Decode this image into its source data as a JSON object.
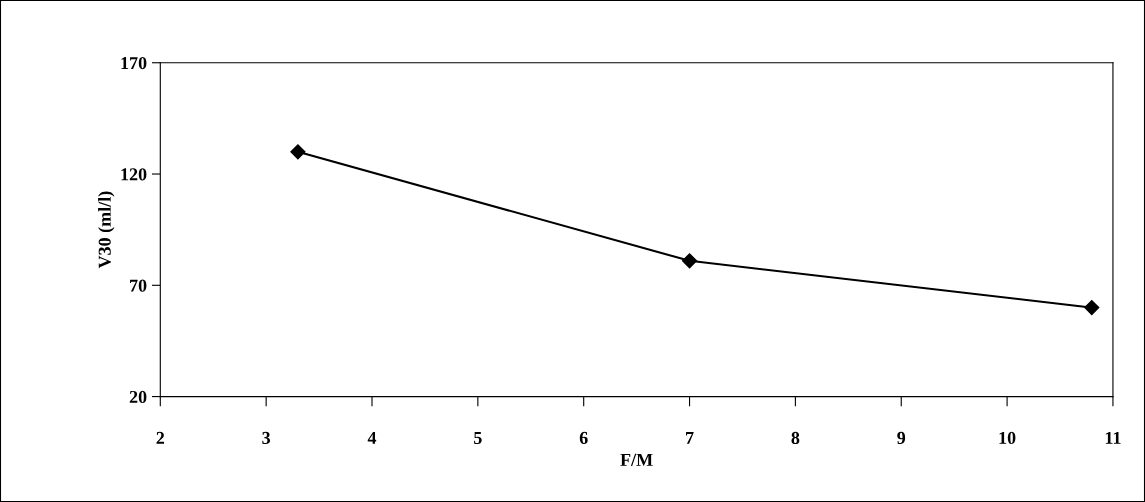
{
  "chart_data": {
    "type": "line",
    "xlabel": "F/M",
    "ylabel": "V30 (ml/l)",
    "x": [
      3.3,
      7,
      10.8
    ],
    "series": [
      {
        "color": "#000000",
        "values": [
          130,
          81,
          60
        ]
      }
    ],
    "xlim": [
      2,
      11
    ],
    "xticks": [
      2,
      3,
      4,
      5,
      6,
      7,
      8,
      9,
      10,
      11
    ],
    "ylim": [
      20,
      170
    ],
    "yticks": [
      20,
      70,
      120,
      170
    ],
    "marker": "diamond",
    "line_style": "solid",
    "grid": false,
    "legend": false
  }
}
